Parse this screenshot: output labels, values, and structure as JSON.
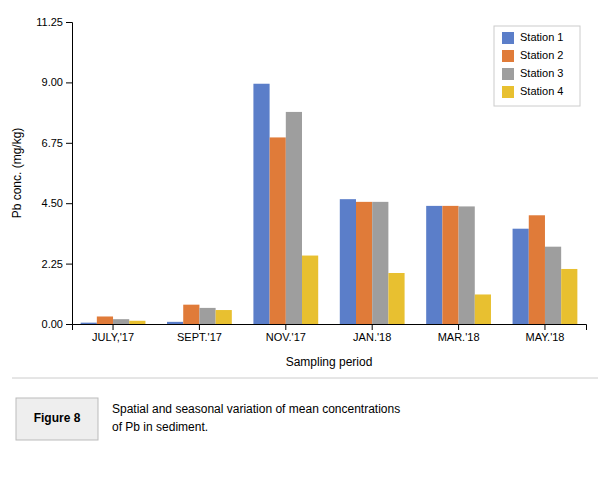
{
  "chart_data": {
    "type": "bar",
    "categories": [
      "JULY,'17",
      "SEPT.'17",
      "NOV.'17",
      "JAN.'18",
      "MAR.'18",
      "MAY.'18"
    ],
    "series": [
      {
        "name": "Station 1",
        "color": "#5B7EC9",
        "values": [
          0.05,
          0.08,
          8.95,
          4.65,
          4.4,
          3.55
        ]
      },
      {
        "name": "Station 2",
        "color": "#E07B39",
        "values": [
          0.28,
          0.72,
          6.95,
          4.55,
          4.4,
          4.05
        ]
      },
      {
        "name": "Station 3",
        "color": "#9E9E9E",
        "values": [
          0.18,
          0.6,
          7.9,
          4.55,
          4.38,
          2.88
        ]
      },
      {
        "name": "Station 4",
        "color": "#E8C030",
        "values": [
          0.12,
          0.52,
          2.55,
          1.9,
          1.1,
          2.05
        ]
      }
    ],
    "ylim": [
      0,
      11.25
    ],
    "yticks": [
      {
        "value": 0,
        "label": "0.00"
      },
      2.25,
      {
        "value": 4.5,
        "label": "4.50"
      },
      6.75,
      {
        "value": 9,
        "label": "9.00"
      },
      11.25
    ],
    "ylabel": "Pb conc. (mg/kg)",
    "xlabel": "Sampling period",
    "legend": "upper right",
    "grid": false,
    "annotations": [
      "Figure 8",
      "Spatial and seasonal variation of mean concentrations\nof Pb in sediment."
    ]
  }
}
